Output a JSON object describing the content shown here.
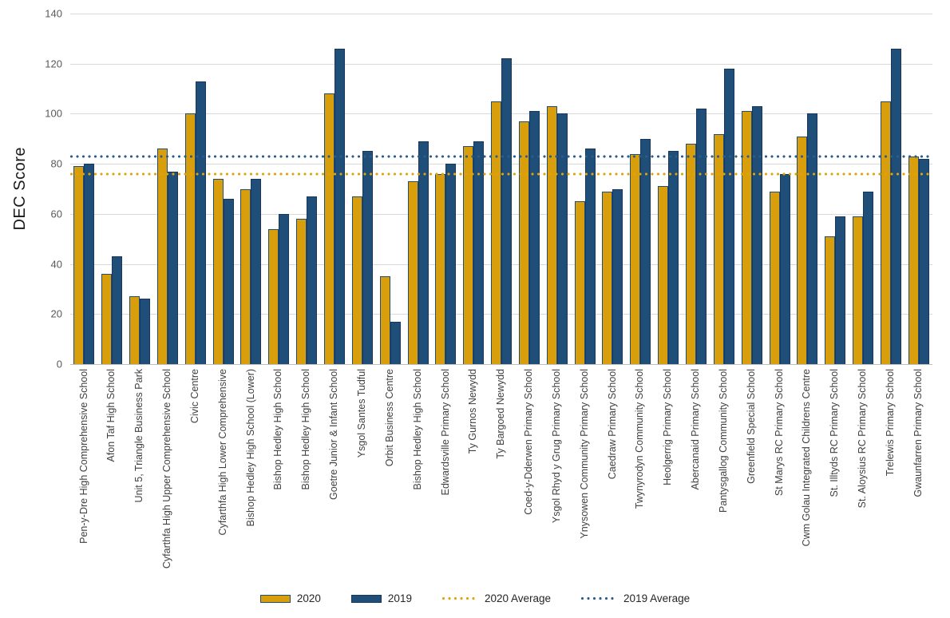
{
  "chart_data": {
    "type": "bar",
    "title": "",
    "xlabel": "",
    "ylabel": "DEC Score",
    "ylim": [
      0,
      140
    ],
    "yticks": [
      0,
      20,
      40,
      60,
      80,
      100,
      120,
      140
    ],
    "grid": true,
    "legend_position": "bottom",
    "categories": [
      "Pen-y-Dre High Comprehensive School",
      "Afon Taf High School",
      "Unit 5, Triangle Business Park",
      "Cyfarthfa High Upper Comprehensive School",
      "Civic Centre",
      "Cyfarthfa High Lower Comprehensive",
      "Bishop Hedley High School (Lower)",
      "Bishop Hedley High School",
      "Bishop Hedley High School",
      "Goetre Junior & Infant School",
      "Ysgol Santes Tudful",
      "Orbit Business Centre",
      "Bishop Hedley High School",
      "Edwardsville Primary School",
      "Ty Gurnos Newydd",
      "Ty Bargoed Newydd",
      "Coed-y-Dderwen Primary School",
      "Ysgol Rhyd y Grug Primary School",
      "Ynysowen Community Primary School",
      "Caedraw Primary School",
      "Twynyrodyn Community School",
      "Heolgerrig Primary School",
      "Abercanaid Primary School",
      "Pantysgallog Community School",
      "Greenfield Special School",
      "St Marys RC Primary School",
      "Cwm Golau Integrated Childrens Centre",
      "St. Illtyds RC Primary School",
      "St. Aloysius RC Primary School",
      "Trelewis Primary School",
      "Gwaunfarren Primary School"
    ],
    "series": [
      {
        "name": "2020",
        "color": "#D99E0B",
        "border_color": "#1F4E79",
        "values": [
          79,
          36,
          27,
          86,
          100,
          74,
          70,
          54,
          58,
          108,
          67,
          35,
          73,
          76,
          87,
          105,
          97,
          103,
          65,
          69,
          84,
          71,
          88,
          92,
          101,
          69,
          91,
          51,
          59,
          105,
          83
        ]
      },
      {
        "name": "2019",
        "color": "#1F4E79",
        "border_color": "#17375E",
        "values": [
          80,
          43,
          26,
          77,
          113,
          66,
          74,
          60,
          67,
          126,
          85,
          17,
          89,
          80,
          89,
          122,
          101,
          100,
          86,
          70,
          90,
          85,
          102,
          118,
          103,
          76,
          100,
          59,
          69,
          126,
          82
        ]
      }
    ],
    "reference_lines": [
      {
        "name": "2020 Average",
        "value": 76,
        "color": "#E0A408",
        "style": "dotted"
      },
      {
        "name": "2019 Average",
        "value": 83,
        "color": "#2A5C8C",
        "style": "dotted"
      }
    ],
    "axis_colors": {
      "tick_label": "#595959",
      "gridline": "#D9D9D9",
      "baseline": "#BFBFBF"
    }
  }
}
